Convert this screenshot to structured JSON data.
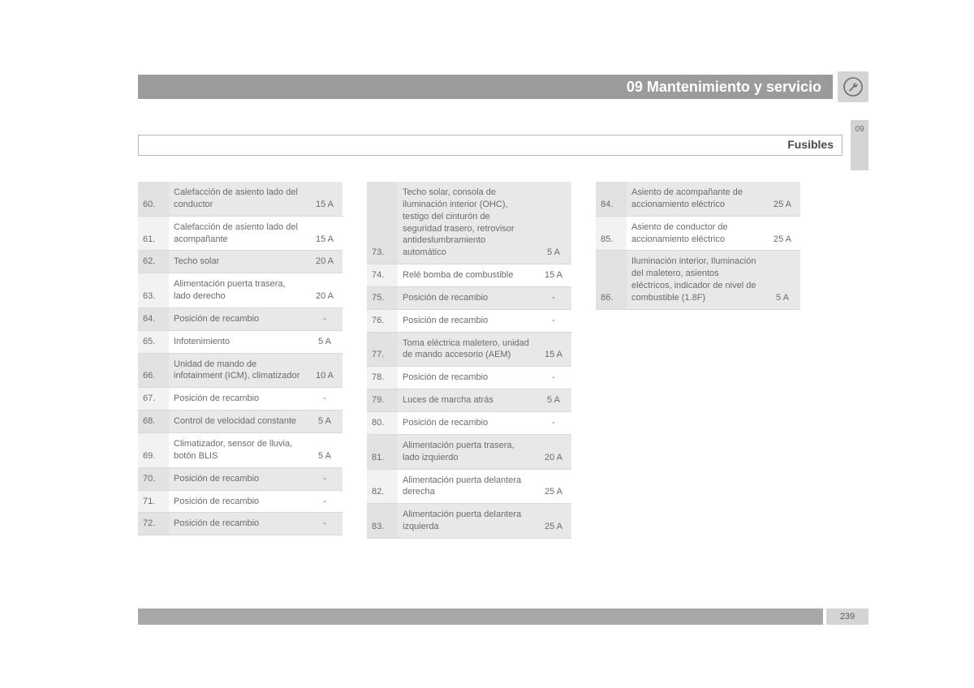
{
  "header": {
    "chapter_title": "09 Mantenimiento y servicio",
    "section_title": "Fusibles",
    "side_tab": "09",
    "page_number": "239"
  },
  "colors": {
    "header_bar": "#9b9b9b",
    "header_text": "#ffffff",
    "icon_bg": "#d4d4d4",
    "row_alt_a": "#e8e8e8",
    "row_alt_b": "#ffffff",
    "border": "#d9d9d9",
    "text": "#6b6b6b",
    "footer_bar": "#a8a8a8"
  },
  "fontsizes": {
    "header": 18,
    "subheader": 14,
    "table": 11,
    "side_tab": 10
  },
  "columns": [
    {
      "rows": [
        {
          "num": "60.",
          "desc": "Calefacción de asiento lado del conductor",
          "amp": "15 A"
        },
        {
          "num": "61.",
          "desc": "Calefacción de asiento lado del acompañante",
          "amp": "15 A"
        },
        {
          "num": "62.",
          "desc": "Techo solar",
          "amp": "20 A"
        },
        {
          "num": "63.",
          "desc": "Alimentación puerta trasera, lado derecho",
          "amp": "20 A"
        },
        {
          "num": "64.",
          "desc": "Posición de recambio",
          "amp": "-"
        },
        {
          "num": "65.",
          "desc": "Infotenimiento",
          "amp": "5 A"
        },
        {
          "num": "66.",
          "desc": "Unidad de mando de infotainment (ICM), climatizador",
          "amp": "10 A"
        },
        {
          "num": "67.",
          "desc": "Posición de recambio",
          "amp": "-"
        },
        {
          "num": "68.",
          "desc": "Control de velocidad constante",
          "amp": "5 A"
        },
        {
          "num": "69.",
          "desc": "Climatizador, sensor de lluvia, botón BLIS",
          "amp": "5 A"
        },
        {
          "num": "70.",
          "desc": "Posición de recambio",
          "amp": "-"
        },
        {
          "num": "71.",
          "desc": "Posición de recambio",
          "amp": "-"
        },
        {
          "num": "72.",
          "desc": "Posición de recambio",
          "amp": "-"
        }
      ]
    },
    {
      "rows": [
        {
          "num": "73.",
          "desc": "Techo solar, consola de iluminación interior (OHC), testigo del cinturón de seguridad trasero, retrovisor antideslumbramiento automático",
          "amp": "5 A"
        },
        {
          "num": "74.",
          "desc": "Relé bomba de combustible",
          "amp": "15 A"
        },
        {
          "num": "75.",
          "desc": "Posición de recambio",
          "amp": "-"
        },
        {
          "num": "76.",
          "desc": "Posición de recambio",
          "amp": "-"
        },
        {
          "num": "77.",
          "desc": "Toma eléctrica maletero, unidad de mando accesorio (AEM)",
          "amp": "15 A"
        },
        {
          "num": "78.",
          "desc": "Posición de recambio",
          "amp": "-"
        },
        {
          "num": "79.",
          "desc": "Luces de marcha atrás",
          "amp": "5 A"
        },
        {
          "num": "80.",
          "desc": "Posición de recambio",
          "amp": "-"
        },
        {
          "num": "81.",
          "desc": "Alimentación puerta trasera, lado izquierdo",
          "amp": "20 A"
        },
        {
          "num": "82.",
          "desc": "Alimentación puerta delantera derecha",
          "amp": "25 A"
        },
        {
          "num": "83.",
          "desc": "Alimentación puerta delantera izquierda",
          "amp": "25 A"
        }
      ]
    },
    {
      "rows": [
        {
          "num": "84.",
          "desc": "Asiento de acompañante de accionamiento eléctrico",
          "amp": "25 A"
        },
        {
          "num": "85.",
          "desc": "Asiento de conductor de accionamiento eléctrico",
          "amp": "25 A"
        },
        {
          "num": "86.",
          "desc": "Iluminación interior, Iluminación del maletero, asientos eléctricos, indicador de nivel de combustible (1.8F)",
          "amp": "5 A"
        }
      ]
    }
  ]
}
